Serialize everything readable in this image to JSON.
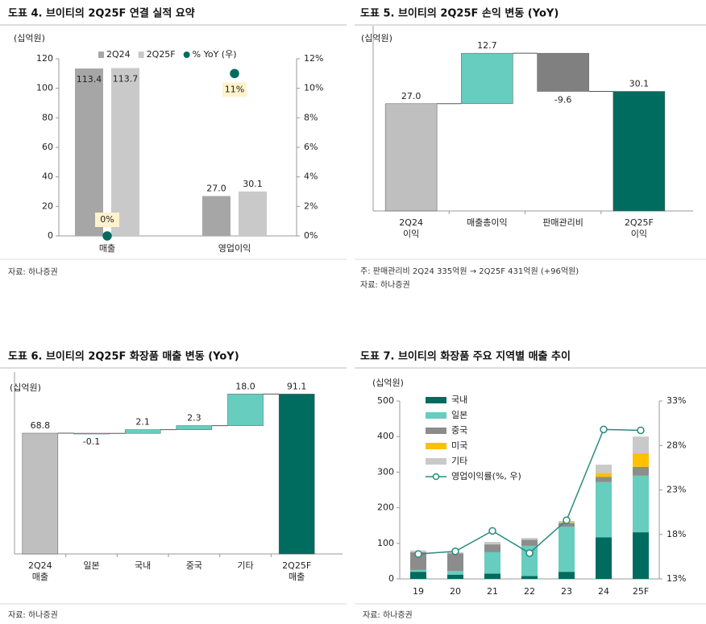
{
  "chart_data": [
    {
      "type": "bar",
      "title": "도표 4. 브이티의 2Q25F 연결 실적 요약",
      "unit": "(십억원)",
      "source": "자료: 하나증권",
      "categories": [
        "매출",
        "영업이익"
      ],
      "series": [
        {
          "name": "2Q24",
          "color": "#a6a6a6",
          "values": [
            113.4,
            27.0
          ],
          "value_labels": [
            "113.4",
            "27.0"
          ]
        },
        {
          "name": "2Q25F",
          "color": "#c9c9c9",
          "values": [
            113.7,
            30.1
          ],
          "value_labels": [
            "113.7",
            "30.1"
          ]
        },
        {
          "name": "% YoY (우)",
          "color": "#006b5f",
          "type": "scatter",
          "axis": "y2",
          "values": [
            0,
            11
          ],
          "value_labels": [
            "0%",
            "11%"
          ]
        }
      ],
      "ylim": [
        0,
        120
      ],
      "yticks": [
        0,
        20,
        40,
        60,
        80,
        100,
        120
      ],
      "y2lim": [
        0,
        12
      ],
      "y2ticks": [
        {
          "value": 0,
          "label": "0%"
        },
        {
          "value": 2,
          "label": "2%"
        },
        {
          "value": 4,
          "label": "4%"
        },
        {
          "value": 6,
          "label": "6%"
        },
        {
          "value": 8,
          "label": "8%"
        },
        {
          "value": 10,
          "label": "10%"
        },
        {
          "value": 12,
          "label": "12%"
        }
      ],
      "legend": "top"
    },
    {
      "type": "waterfall",
      "title": "도표 5. 브이티의 2Q25F 손익 변동 (YoY)",
      "unit": "(십억원)",
      "note": "주: 판매관리비 2Q24 335억원 → 2Q25F 431억원 (+96억원)",
      "source": "자료: 하나증권",
      "categories": [
        "2Q24\n이익",
        "매출총이익",
        "판매관리비",
        "2Q25F\n이익"
      ],
      "values": [
        27.0,
        12.7,
        -9.6,
        30.1
      ],
      "value_labels": [
        "27.0",
        "12.7",
        "-9.6",
        "30.1"
      ],
      "measure": [
        "total",
        "relative",
        "relative",
        "total"
      ],
      "colors": [
        "#bfbfbf",
        "#66cdbf",
        "#808080",
        "#006b5f"
      ],
      "ylim": [
        0,
        45
      ]
    },
    {
      "type": "waterfall",
      "title": "도표 6. 브이티의 2Q25F 화장품 매출 변동 (YoY)",
      "unit": "(십억원)",
      "source": "자료: 하나증권",
      "categories": [
        "2Q24\n매출",
        "일본",
        "국내",
        "중국",
        "기타",
        "2Q25F\n매출"
      ],
      "values": [
        68.8,
        -0.1,
        2.1,
        2.3,
        18.0,
        91.1
      ],
      "value_labels": [
        "68.8",
        "-0.1",
        "2.1",
        "2.3",
        "18.0",
        "91.1"
      ],
      "measure": [
        "total",
        "relative",
        "relative",
        "relative",
        "relative",
        "total"
      ],
      "colors": [
        "#bfbfbf",
        "#66cdbf",
        "#66cdbf",
        "#66cdbf",
        "#66cdbf",
        "#006b5f"
      ],
      "ylim": [
        0,
        100
      ]
    },
    {
      "type": "bar",
      "stacked": true,
      "title": "도표 7. 브이티의 화장품 주요 지역별 매출 추이",
      "unit": "(십억원)",
      "source": "자료: 하나증권",
      "categories": [
        "19",
        "20",
        "21",
        "22",
        "23",
        "24",
        "25F"
      ],
      "series": [
        {
          "name": "국내",
          "color": "#006b5f",
          "values": [
            20,
            12,
            15,
            8,
            20,
            117,
            131
          ]
        },
        {
          "name": "일본",
          "color": "#66cdbf",
          "values": [
            5,
            10,
            60,
            85,
            127,
            155,
            159
          ]
        },
        {
          "name": "중국",
          "color": "#8c8c8c",
          "values": [
            50,
            50,
            22,
            17,
            10,
            15,
            25
          ]
        },
        {
          "name": "미국",
          "color": "#ffc000",
          "values": [
            0,
            0,
            0,
            0,
            2,
            11,
            38
          ]
        },
        {
          "name": "기타",
          "color": "#c9c9c9",
          "values": [
            5,
            3,
            7,
            5,
            4,
            23,
            47
          ]
        },
        {
          "name": "영업이익률(%, 우)",
          "color": "#2a8a7e",
          "type": "line",
          "axis": "y2",
          "values": [
            15.8,
            16.1,
            18.4,
            15.9,
            19.6,
            29.8,
            29.7
          ]
        }
      ],
      "ylim": [
        0,
        500
      ],
      "yticks": [
        0,
        100,
        200,
        300,
        400,
        500
      ],
      "y2lim": [
        13,
        33
      ],
      "y2ticks": [
        {
          "value": 13,
          "label": "13%"
        },
        {
          "value": 18,
          "label": "18%"
        },
        {
          "value": 23,
          "label": "23%"
        },
        {
          "value": 28,
          "label": "28%"
        },
        {
          "value": 33,
          "label": "33%"
        }
      ],
      "legend": "upper left"
    }
  ]
}
